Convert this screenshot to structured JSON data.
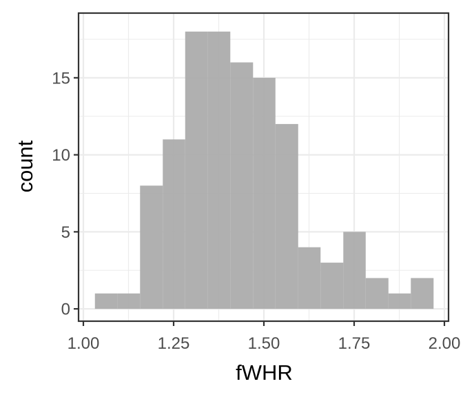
{
  "chart_data": {
    "type": "histogram",
    "xlabel": "fWHR",
    "ylabel": "count",
    "xlim": [
      1.0,
      2.0
    ],
    "ylim": [
      -0.8,
      19.2
    ],
    "grid": true,
    "theme": "bw",
    "bar_color": "#a9a9a9",
    "gridline_color": "#ebebeb",
    "bins": [
      {
        "x0": 1.032,
        "x1": 1.095,
        "count": 1
      },
      {
        "x0": 1.095,
        "x1": 1.157,
        "count": 1
      },
      {
        "x0": 1.157,
        "x1": 1.22,
        "count": 8
      },
      {
        "x0": 1.22,
        "x1": 1.282,
        "count": 11
      },
      {
        "x0": 1.282,
        "x1": 1.345,
        "count": 18
      },
      {
        "x0": 1.345,
        "x1": 1.407,
        "count": 18
      },
      {
        "x0": 1.407,
        "x1": 1.47,
        "count": 16
      },
      {
        "x0": 1.47,
        "x1": 1.532,
        "count": 15
      },
      {
        "x0": 1.532,
        "x1": 1.595,
        "count": 12
      },
      {
        "x0": 1.595,
        "x1": 1.657,
        "count": 4
      },
      {
        "x0": 1.657,
        "x1": 1.72,
        "count": 3
      },
      {
        "x0": 1.72,
        "x1": 1.782,
        "count": 5
      },
      {
        "x0": 1.782,
        "x1": 1.845,
        "count": 2
      },
      {
        "x0": 1.845,
        "x1": 1.907,
        "count": 1
      },
      {
        "x0": 1.907,
        "x1": 1.97,
        "count": 2
      }
    ],
    "x_ticks": [
      {
        "value": 1.0,
        "label": "1.00"
      },
      {
        "value": 1.25,
        "label": "1.25"
      },
      {
        "value": 1.5,
        "label": "1.50"
      },
      {
        "value": 1.75,
        "label": "1.75"
      },
      {
        "value": 2.0,
        "label": "2.00"
      }
    ],
    "y_ticks": [
      {
        "value": 0,
        "label": "0"
      },
      {
        "value": 5,
        "label": "5"
      },
      {
        "value": 10,
        "label": "10"
      },
      {
        "value": 15,
        "label": "15"
      }
    ]
  }
}
